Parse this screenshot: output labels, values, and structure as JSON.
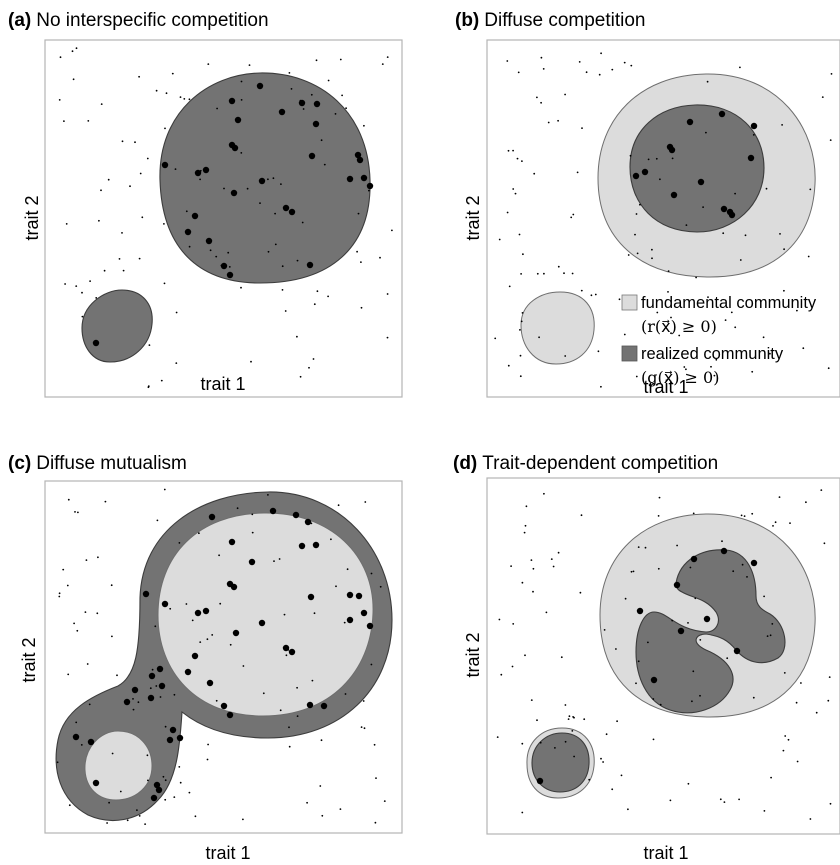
{
  "panels": [
    {
      "letter": "(a)",
      "title": "No interspecific competition",
      "xlabel": "trait 1",
      "ylabel": "trait 2"
    },
    {
      "letter": "(b)",
      "title": "Diffuse competition",
      "xlabel": "trait 1",
      "ylabel": "trait 2"
    },
    {
      "letter": "(c)",
      "title": "Diffuse mutualism",
      "xlabel": "trait 1",
      "ylabel": "trait 2"
    },
    {
      "letter": "(d)",
      "title": "Trait-dependent competition",
      "xlabel": "trait 1",
      "ylabel": "trait 2"
    }
  ],
  "legend": {
    "fundamental_label": "fundamental community",
    "fundamental_condition": "(r(x⃗) ≥ 0)",
    "realized_label": "realized community",
    "realized_condition": "(g(x⃗) ≥ 0)"
  },
  "colors": {
    "realized": "#737373",
    "fundamental": "#dcdcdc",
    "frame": "#b4b4b4",
    "points": "#000000"
  }
}
